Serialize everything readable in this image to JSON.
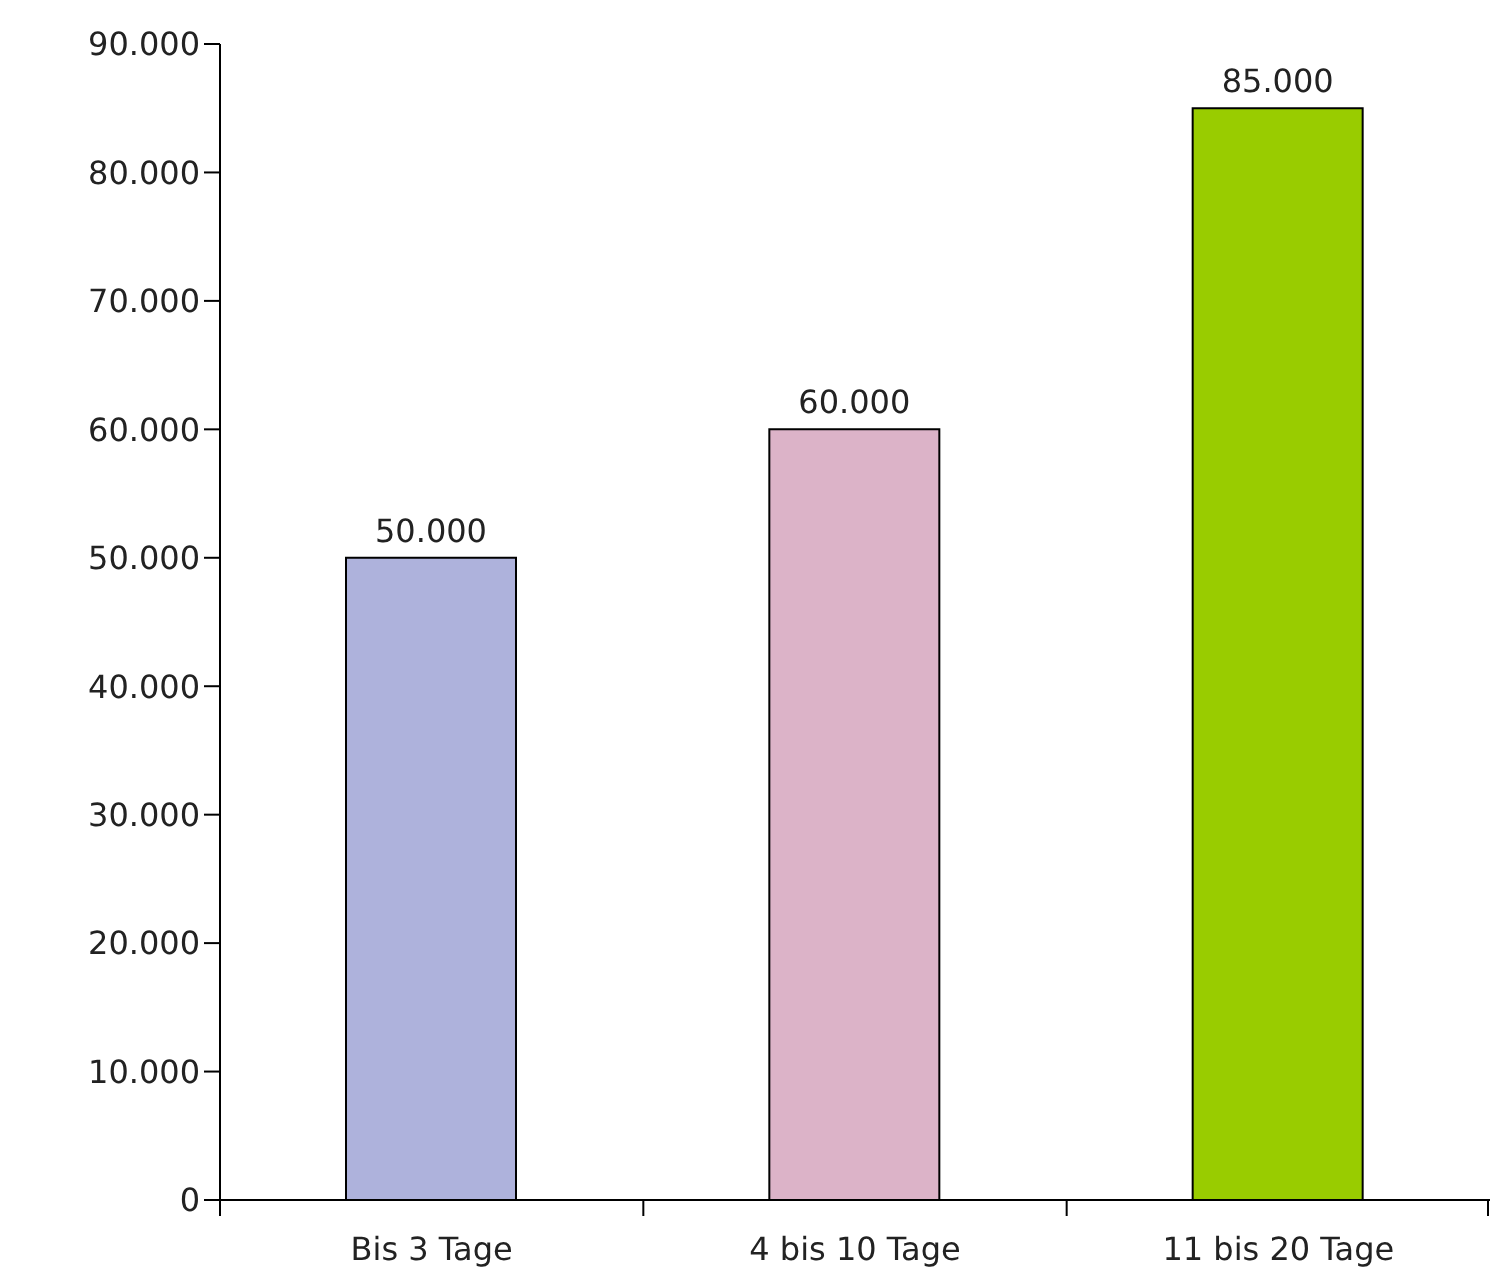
{
  "chart_data": {
    "type": "bar",
    "categories": [
      "Bis 3 Tage",
      "4 bis 10 Tage",
      "11 bis 20 Tage"
    ],
    "values": [
      50000,
      60000,
      85000
    ],
    "colors": [
      "#aeb2dc",
      "#dcb3c8",
      "#99cc00"
    ],
    "value_labels": [
      "50.000",
      "60.000",
      "85.000"
    ],
    "ylim": [
      0,
      90000
    ],
    "yticks": [
      {
        "value": 0,
        "label": "0"
      },
      {
        "value": 10000,
        "label": "10.000"
      },
      {
        "value": 20000,
        "label": "20.000"
      },
      {
        "value": 30000,
        "label": "30.000"
      },
      {
        "value": 40000,
        "label": "40.000"
      },
      {
        "value": 50000,
        "label": "50.000"
      },
      {
        "value": 60000,
        "label": "60.000"
      },
      {
        "value": 70000,
        "label": "70.000"
      },
      {
        "value": 80000,
        "label": "80.000"
      },
      {
        "value": 90000,
        "label": "90.000"
      }
    ],
    "grid": false,
    "legend": false
  }
}
